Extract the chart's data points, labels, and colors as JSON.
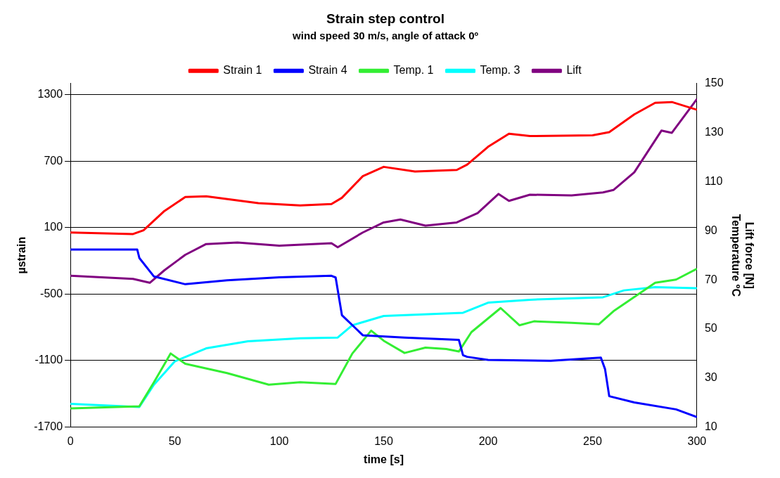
{
  "chart_data": {
    "type": "line",
    "title": "Strain step control",
    "subtitle": "wind speed 30 m/s, angle of attack 0º",
    "xlabel": "time [s]",
    "ylabel": "µstrain",
    "y2label": "Lift force [N]\nTemperature ºC",
    "xlim": [
      0,
      300
    ],
    "xticks": [
      0,
      50,
      100,
      150,
      200,
      250,
      300
    ],
    "ylim": [
      -1700,
      1400
    ],
    "yticks": [
      -1700,
      -1100,
      -500,
      100,
      700,
      1300
    ],
    "y2lim": [
      10,
      150
    ],
    "y2ticks": [
      10,
      30,
      50,
      70,
      90,
      110,
      130,
      150
    ],
    "grid": "y",
    "legend": "top",
    "marker": "none",
    "line_style": "solid",
    "series": [
      {
        "name": "Strain 1",
        "color": "#ff0000",
        "x": [
          0,
          30,
          35,
          45,
          55,
          65,
          90,
          110,
          125,
          130,
          140,
          150,
          165,
          185,
          190,
          200,
          210,
          220,
          250,
          258,
          270,
          280,
          288,
          300
        ],
        "values": [
          56,
          42,
          76,
          250,
          376,
          383,
          320,
          300,
          313,
          369,
          564,
          648,
          606,
          620,
          669,
          829,
          947,
          926,
          933,
          961,
          1121,
          1226,
          1233,
          1163
        ]
      },
      {
        "name": "Strain 4",
        "color": "#0000ff",
        "x": [
          0,
          32,
          33,
          40,
          55,
          75,
          100,
          125,
          127,
          130,
          140,
          160,
          186,
          188,
          190,
          200,
          230,
          254,
          256,
          258,
          270,
          290,
          300
        ],
        "values": [
          -98,
          -98,
          -174,
          -341,
          -411,
          -376,
          -348,
          -335,
          -350,
          -690,
          -871,
          -892,
          -913,
          -1052,
          -1066,
          -1094,
          -1101,
          -1073,
          -1177,
          -1421,
          -1477,
          -1540,
          -1609
        ]
      },
      {
        "name": "Temp. 1",
        "color": "#33ee33",
        "axis": "y2",
        "x": [
          0,
          33,
          40,
          48,
          55,
          75,
          95,
          110,
          127,
          135,
          144,
          150,
          160,
          170,
          180,
          186,
          192,
          206,
          215,
          222,
          240,
          253,
          260,
          280,
          290,
          300
        ],
        "values": [
          17.6,
          18.5,
          28.3,
          40,
          35.8,
          32,
          27.3,
          28.3,
          27.6,
          40,
          49.3,
          45.2,
          40.2,
          42.4,
          41.8,
          40.8,
          48.7,
          58.5,
          51.5,
          53.1,
          52.5,
          51.9,
          57.2,
          68.8,
          70.1,
          74.5
        ]
      },
      {
        "name": "Temp. 3",
        "color": "#00ffff",
        "axis": "y2",
        "x": [
          0,
          33,
          40,
          50,
          65,
          85,
          110,
          128,
          135,
          150,
          188,
          200,
          220,
          255,
          265,
          280,
          300
        ],
        "values": [
          19.5,
          18.2,
          27.3,
          36.8,
          42.1,
          45,
          46.2,
          46.5,
          51.5,
          55.3,
          56.6,
          60.7,
          61.9,
          62.9,
          65.7,
          67,
          66.6
        ]
      },
      {
        "name": "Lift",
        "color": "#800080",
        "axis": "y2",
        "x": [
          0,
          30,
          38,
          45,
          55,
          65,
          80,
          100,
          125,
          128,
          140,
          150,
          158,
          170,
          185,
          195,
          205,
          210,
          220,
          240,
          255,
          260,
          270,
          283,
          288,
          300
        ],
        "values": [
          71.7,
          70.4,
          68.8,
          73.9,
          80.2,
          84.6,
          85.2,
          83.9,
          84.9,
          83.3,
          89.3,
          93.4,
          94.6,
          92.1,
          93.4,
          97.2,
          105,
          102.2,
          104.7,
          104.4,
          105.6,
          106.6,
          113.8,
          130.8,
          129.9,
          143.7
        ]
      }
    ]
  }
}
